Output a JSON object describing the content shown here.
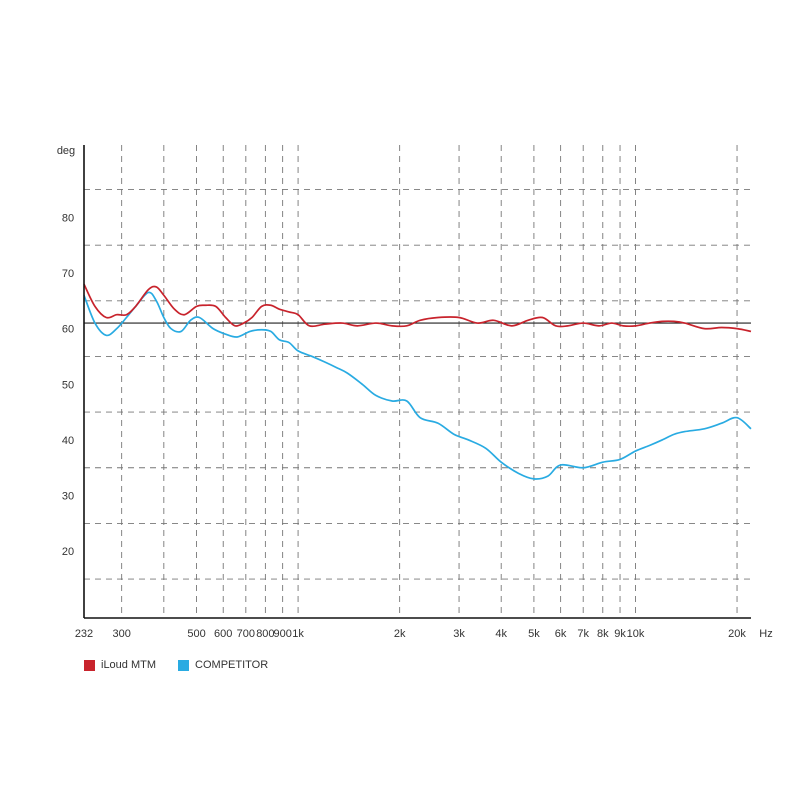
{
  "chart_data": {
    "type": "line",
    "title": "",
    "xlabel": "Hz",
    "ylabel": "deg",
    "x_scale": "log",
    "xlim": [
      232,
      22000
    ],
    "ylim": [
      8,
      93
    ],
    "x_ticks": [
      {
        "value": 232,
        "label": "232"
      },
      {
        "value": 300,
        "label": "300"
      },
      {
        "value": 500,
        "label": "500"
      },
      {
        "value": 600,
        "label": "600"
      },
      {
        "value": 700,
        "label": "700"
      },
      {
        "value": 800,
        "label": "800"
      },
      {
        "value": 900,
        "label": "900"
      },
      {
        "value": 1000,
        "label": "1k"
      },
      {
        "value": 2000,
        "label": "2k"
      },
      {
        "value": 3000,
        "label": "3k"
      },
      {
        "value": 4000,
        "label": "4k"
      },
      {
        "value": 5000,
        "label": "5k"
      },
      {
        "value": 6000,
        "label": "6k"
      },
      {
        "value": 7000,
        "label": "7k"
      },
      {
        "value": 8000,
        "label": "8k"
      },
      {
        "value": 9000,
        "label": "9k"
      },
      {
        "value": 10000,
        "label": "10k"
      },
      {
        "value": 20000,
        "label": "20k"
      }
    ],
    "x_grid": [
      300,
      400,
      500,
      600,
      700,
      800,
      900,
      1000,
      2000,
      3000,
      4000,
      5000,
      6000,
      7000,
      8000,
      9000,
      10000,
      20000
    ],
    "y_ticks": [
      20,
      30,
      40,
      50,
      60,
      70,
      80
    ],
    "y_grid": [
      15,
      25,
      35,
      45,
      55,
      65,
      75,
      85
    ],
    "reference_line": 61,
    "grid": true,
    "legend_position": "bottom-left",
    "series": [
      {
        "name": "iLoud MTM",
        "color": "#c8232c",
        "x": [
          232,
          250,
          270,
          290,
          310,
          330,
          360,
          380,
          400,
          430,
          460,
          500,
          530,
          570,
          610,
          650,
          690,
          730,
          780,
          830,
          880,
          940,
          1000,
          1080,
          1200,
          1350,
          1500,
          1700,
          1900,
          2100,
          2300,
          2600,
          3000,
          3400,
          3800,
          4300,
          4800,
          5300,
          5800,
          6300,
          7000,
          7800,
          8500,
          9200,
          10000,
          11000,
          12000,
          13000,
          14000,
          16000,
          18000,
          20000,
          22000
        ],
        "y": [
          68,
          64,
          62,
          62.5,
          62.5,
          64,
          67,
          67.5,
          66,
          63.5,
          62.5,
          64,
          64.2,
          64,
          62,
          60.5,
          61,
          62,
          64,
          64.2,
          63.5,
          63,
          62.5,
          60.5,
          60.8,
          61,
          60.5,
          61,
          60.5,
          60.5,
          61.5,
          62,
          62,
          61,
          61.5,
          60.5,
          61.5,
          62,
          60.5,
          60.5,
          61,
          60.5,
          61,
          60.5,
          60.5,
          61,
          61.3,
          61.3,
          61,
          60,
          60.2,
          60,
          59.5
        ]
      },
      {
        "name": "COMPETITOR",
        "color": "#29abe2",
        "x": [
          232,
          250,
          270,
          290,
          310,
          330,
          360,
          380,
          400,
          420,
          450,
          480,
          510,
          560,
          610,
          660,
          720,
          780,
          830,
          880,
          940,
          1000,
          1100,
          1200,
          1300,
          1400,
          1550,
          1700,
          1900,
          2100,
          2300,
          2600,
          2900,
          3200,
          3600,
          4000,
          4500,
          5000,
          5500,
          6000,
          7000,
          8000,
          9000,
          10000,
          11000,
          12000,
          13000,
          14000,
          16000,
          18000,
          20000,
          22000
        ],
        "y": [
          66,
          61,
          58.8,
          60,
          62,
          64,
          66.5,
          65,
          62,
          60,
          59.5,
          61.5,
          62,
          60,
          59,
          58.5,
          59.5,
          59.8,
          59.5,
          58,
          57.5,
          56,
          55,
          54,
          53,
          52,
          50,
          48,
          47,
          47,
          44,
          43,
          41,
          40,
          38.5,
          36,
          34,
          33,
          33.5,
          35.5,
          35,
          36,
          36.5,
          38,
          39,
          40,
          41,
          41.5,
          42,
          43,
          44,
          42
        ]
      }
    ]
  }
}
